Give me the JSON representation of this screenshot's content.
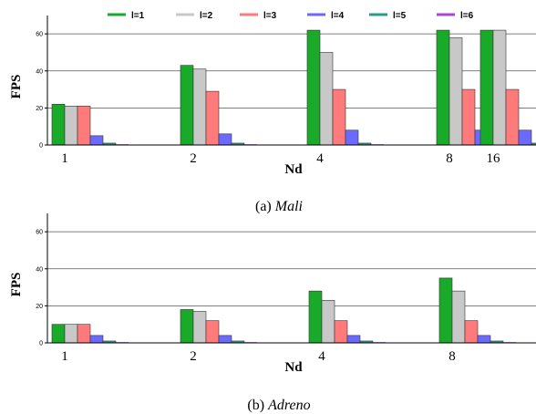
{
  "legend": [
    "l=1",
    "l=2",
    "l=3",
    "l=4",
    "l=5",
    "l=6"
  ],
  "colors": [
    "#1aaa2a",
    "#c8c8c8",
    "#ff7a7a",
    "#6a6aff",
    "#2a9a8a",
    "#aa44cc"
  ],
  "chart_data": [
    {
      "type": "bar",
      "caption_prefix": "(a) ",
      "caption_name": "Mali",
      "xlabel": "Nd",
      "ylabel": "FPS",
      "ylim": [
        0,
        65
      ],
      "yticks": [
        0,
        20,
        40,
        60
      ],
      "grid": true,
      "categories": [
        "1",
        "2",
        "4",
        "8",
        "16"
      ],
      "series": [
        {
          "name": "l=1",
          "values": [
            22,
            43,
            62,
            62,
            62
          ]
        },
        {
          "name": "l=2",
          "values": [
            21,
            41,
            50,
            58,
            62
          ]
        },
        {
          "name": "l=3",
          "values": [
            21,
            29,
            30,
            30,
            30
          ]
        },
        {
          "name": "l=4",
          "values": [
            5,
            6,
            8,
            8,
            8
          ]
        },
        {
          "name": "l=5",
          "values": [
            1,
            1,
            1,
            1,
            1
          ]
        },
        {
          "name": "l=6",
          "values": [
            0,
            0,
            0,
            0,
            0
          ]
        }
      ]
    },
    {
      "type": "bar",
      "caption_prefix": "(b) ",
      "caption_name": "Adreno",
      "xlabel": "Nd",
      "ylabel": "FPS",
      "ylim": [
        0,
        65
      ],
      "yticks": [
        0,
        20,
        40,
        60
      ],
      "grid": true,
      "categories": [
        "1",
        "2",
        "4",
        "8"
      ],
      "series": [
        {
          "name": "l=1",
          "values": [
            10,
            18,
            28,
            35
          ]
        },
        {
          "name": "l=2",
          "values": [
            10,
            17,
            23,
            28
          ]
        },
        {
          "name": "l=3",
          "values": [
            10,
            12,
            12,
            12
          ]
        },
        {
          "name": "l=4",
          "values": [
            4,
            4,
            4,
            4
          ]
        },
        {
          "name": "l=5",
          "values": [
            1,
            1,
            1,
            1
          ]
        },
        {
          "name": "l=6",
          "values": [
            0,
            0,
            0,
            0
          ]
        }
      ]
    }
  ]
}
